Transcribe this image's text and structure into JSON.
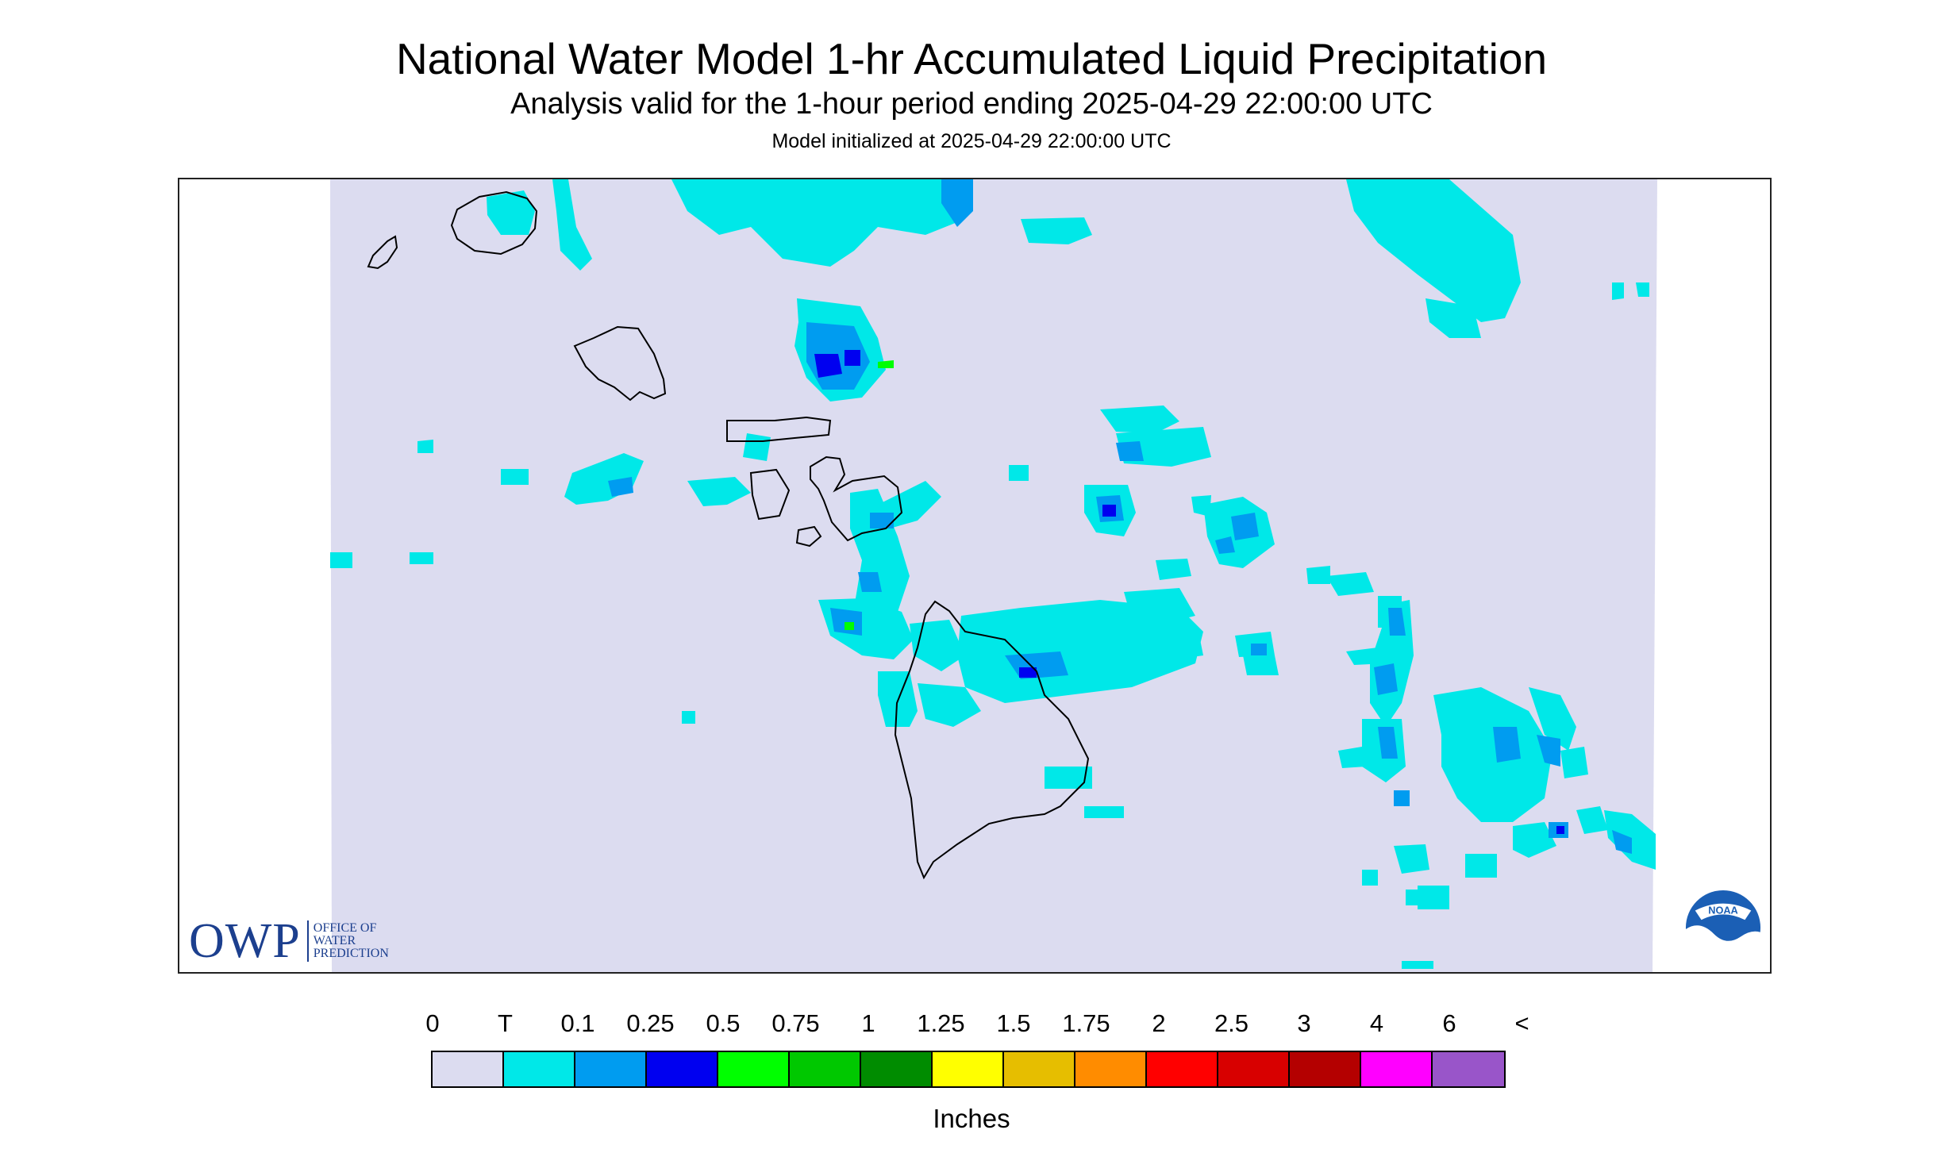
{
  "header": {
    "title": "National Water Model 1-hr Accumulated Liquid Precipitation",
    "subtitle": "Analysis valid for the 1-hour period ending 2025-04-29 22:00:00 UTC",
    "init_line": "Model initialized at 2025-04-29 22:00:00 UTC"
  },
  "map": {
    "background_color": "#dcdcf0",
    "coast_color": "#000000",
    "islands": [
      "Niihau",
      "Kauai",
      "Oahu",
      "Molokai",
      "Lanai",
      "Maui",
      "Kahoolawe",
      "Hawaii"
    ]
  },
  "legend": {
    "labels": [
      "0",
      "T",
      "0.1",
      "0.25",
      "0.5",
      "0.75",
      "1",
      "1.25",
      "1.5",
      "1.75",
      "2",
      "2.5",
      "3",
      "4",
      "6",
      "<"
    ],
    "colors": [
      "#dcdcf0",
      "#00e8e8",
      "#009cf0",
      "#0000f0",
      "#00ff00",
      "#00c800",
      "#008c00",
      "#ffff00",
      "#e6be00",
      "#ff8c00",
      "#ff0000",
      "#d80000",
      "#b40000",
      "#ff00ff",
      "#9955c9"
    ],
    "units": "Inches"
  },
  "logos": {
    "owp_letters": "OWP",
    "owp_line1": "OFFICE OF",
    "owp_line2": "WATER",
    "owp_line3": "PREDICTION",
    "noaa_text": "NOAA"
  }
}
